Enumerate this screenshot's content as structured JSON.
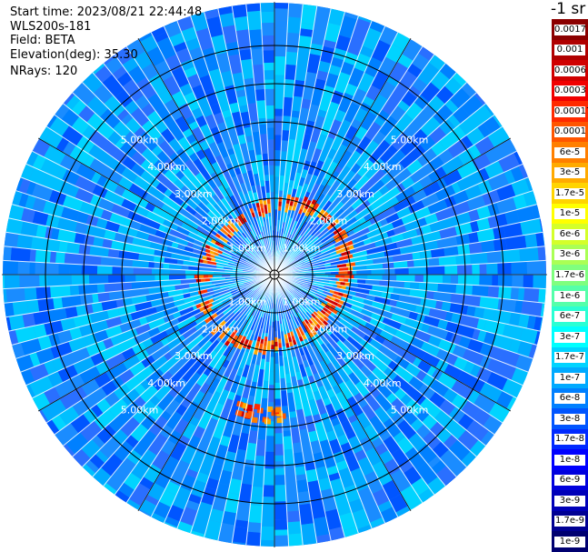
{
  "header": {
    "start_time": "Start time: 2023/08/21 22:44:48",
    "instrument": "WLS200s-181",
    "field": "Field: BETA",
    "elevation": "Elevation(deg): 35.30",
    "nrays": "NRays: 120"
  },
  "colorbar": {
    "unit_label": "-1 sr",
    "levels": [
      {
        "label": "0.0017",
        "color": "#8b0000"
      },
      {
        "label": "0.001",
        "color": "#b00000"
      },
      {
        "label": "0.0006",
        "color": "#d00000"
      },
      {
        "label": "0.0003",
        "color": "#f00000"
      },
      {
        "label": "0.00017",
        "color": "#ff2a00"
      },
      {
        "label": "0.0001",
        "color": "#ff5500"
      },
      {
        "label": "6e-5",
        "color": "#ff7f00"
      },
      {
        "label": "3e-5",
        "color": "#ffaa00"
      },
      {
        "label": "1.7e-5",
        "color": "#ffd400"
      },
      {
        "label": "1e-5",
        "color": "#ffff00"
      },
      {
        "label": "6e-6",
        "color": "#d4ff2a"
      },
      {
        "label": "3e-6",
        "color": "#aaff55"
      },
      {
        "label": "1.7e-6",
        "color": "#7fff7f"
      },
      {
        "label": "1e-6",
        "color": "#55ffaa"
      },
      {
        "label": "6e-7",
        "color": "#2affd4"
      },
      {
        "label": "3e-7",
        "color": "#00ffff"
      },
      {
        "label": "1.7e-7",
        "color": "#00d4ff"
      },
      {
        "label": "1e-7",
        "color": "#00aaff"
      },
      {
        "label": "6e-8",
        "color": "#0080ff"
      },
      {
        "label": "3e-8",
        "color": "#0055ff"
      },
      {
        "label": "1.7e-8",
        "color": "#002aff"
      },
      {
        "label": "1e-8",
        "color": "#0000ff"
      },
      {
        "label": "6e-9",
        "color": "#0000dd"
      },
      {
        "label": "3e-9",
        "color": "#0000b8"
      },
      {
        "label": "1.7e-9",
        "color": "#000093"
      },
      {
        "label": "1e-9",
        "color": "#000070"
      }
    ]
  },
  "chart_data": {
    "type": "heatmap",
    "projection": "polar PPI",
    "field": "BETA",
    "elevation_deg": 35.3,
    "n_rays": 120,
    "range_rings_km": [
      1,
      2,
      3,
      4,
      5,
      6
    ],
    "range_ring_labels": [
      "1.00km",
      "2.00km",
      "3.00km",
      "4.00km",
      "5.00km"
    ],
    "azimuth_spokes_deg": [
      0,
      30,
      60,
      90,
      120,
      150,
      180,
      210,
      240,
      270,
      300,
      330
    ],
    "background_level": "1e-8 to 6e-8",
    "ring_feature": {
      "description_range_km": [
        1.6,
        2.2
      ],
      "peak_level": "0.0006",
      "typical_levels": [
        "3e-5",
        "6e-5",
        "0.0001",
        "0.00017"
      ]
    },
    "blob_feature": {
      "azimuth_deg": 185,
      "range_km": 3.6,
      "peak_level": "0.0001"
    }
  }
}
